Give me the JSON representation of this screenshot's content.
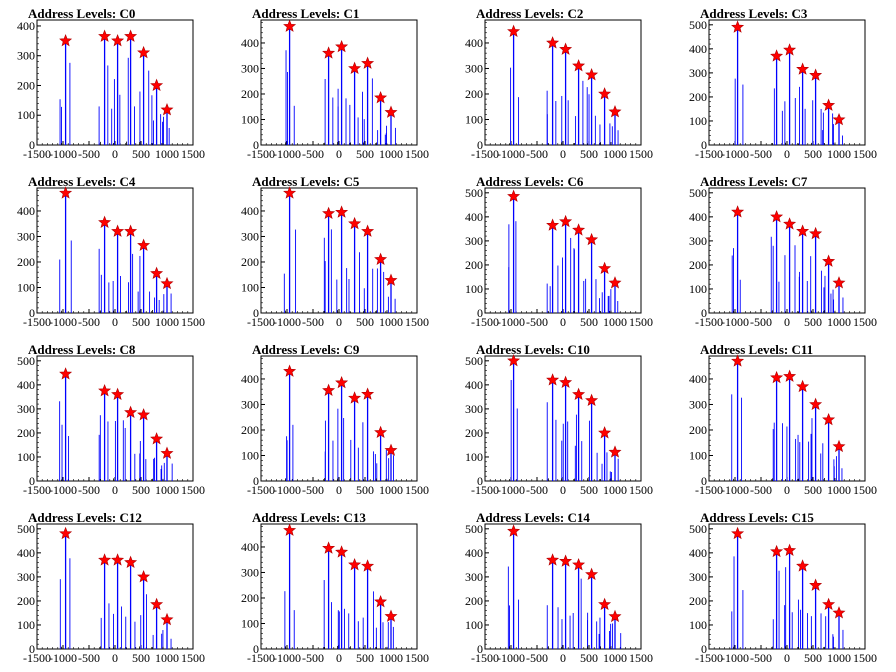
{
  "chart_data": {
    "type": "histogram",
    "layout": "4x4 grid",
    "panel_title_prefix": "Address Levels: ",
    "xlim": [
      -1500,
      1500
    ],
    "x_tick_labels": [
      "-1500",
      "-1000",
      "-500",
      "0",
      "500",
      "1000",
      "1500"
    ],
    "x_ticks": [
      -1500,
      -1000,
      -500,
      0,
      500,
      1000,
      1500
    ],
    "bar_color": "#0000ff",
    "marker_color": "#ff0000",
    "marker_shape": "star",
    "peak_x": [
      -950,
      -200,
      50,
      300,
      550,
      800,
      1000
    ],
    "panels": [
      {
        "title": "C0",
        "ylim": [
          0,
          420
        ],
        "yticks": [
          0,
          100,
          200,
          300,
          400
        ],
        "peaks": [
          350,
          365,
          350,
          365,
          310,
          200,
          118
        ]
      },
      {
        "title": "C1",
        "ylim": [
          0,
          490
        ],
        "yticks": [
          0,
          100,
          200,
          300,
          400
        ],
        "peaks": [
          465,
          360,
          385,
          300,
          320,
          185,
          128
        ]
      },
      {
        "title": "C2",
        "ylim": [
          0,
          490
        ],
        "yticks": [
          0,
          100,
          200,
          300,
          400
        ],
        "peaks": [
          445,
          400,
          375,
          310,
          275,
          200,
          130
        ]
      },
      {
        "title": "C3",
        "ylim": [
          0,
          520
        ],
        "yticks": [
          0,
          100,
          200,
          300,
          400,
          500
        ],
        "peaks": [
          490,
          370,
          395,
          315,
          290,
          165,
          105
        ]
      },
      {
        "title": "C4",
        "ylim": [
          0,
          490
        ],
        "yticks": [
          0,
          100,
          200,
          300,
          400
        ],
        "peaks": [
          470,
          355,
          320,
          320,
          265,
          155,
          115
        ]
      },
      {
        "title": "C5",
        "ylim": [
          0,
          490
        ],
        "yticks": [
          0,
          100,
          200,
          300,
          400
        ],
        "peaks": [
          470,
          390,
          395,
          350,
          320,
          210,
          128
        ]
      },
      {
        "title": "C6",
        "ylim": [
          0,
          520
        ],
        "yticks": [
          0,
          100,
          200,
          300,
          400,
          500
        ],
        "peaks": [
          485,
          365,
          380,
          345,
          305,
          185,
          125
        ]
      },
      {
        "title": "C7",
        "ylim": [
          0,
          520
        ],
        "yticks": [
          0,
          100,
          200,
          300,
          400,
          500
        ],
        "peaks": [
          420,
          400,
          370,
          340,
          330,
          215,
          125
        ]
      },
      {
        "title": "C8",
        "ylim": [
          0,
          520
        ],
        "yticks": [
          0,
          100,
          200,
          300,
          400,
          500
        ],
        "peaks": [
          445,
          375,
          360,
          285,
          275,
          175,
          115
        ]
      },
      {
        "title": "C9",
        "ylim": [
          0,
          490
        ],
        "yticks": [
          0,
          100,
          200,
          300,
          400
        ],
        "peaks": [
          430,
          355,
          385,
          325,
          340,
          190,
          120
        ]
      },
      {
        "title": "C10",
        "ylim": [
          0,
          520
        ],
        "yticks": [
          0,
          100,
          200,
          300,
          400,
          500
        ],
        "peaks": [
          500,
          420,
          410,
          360,
          335,
          200,
          120
        ]
      },
      {
        "title": "C11",
        "ylim": [
          0,
          490
        ],
        "yticks": [
          0,
          100,
          200,
          300,
          400
        ],
        "peaks": [
          470,
          405,
          410,
          370,
          300,
          240,
          135
        ]
      },
      {
        "title": "C12",
        "ylim": [
          0,
          520
        ],
        "yticks": [
          0,
          100,
          200,
          300,
          400,
          500
        ],
        "peaks": [
          480,
          370,
          370,
          360,
          300,
          185,
          122
        ]
      },
      {
        "title": "C13",
        "ylim": [
          0,
          490
        ],
        "yticks": [
          0,
          100,
          200,
          300,
          400
        ],
        "peaks": [
          465,
          395,
          380,
          330,
          325,
          185,
          128
        ]
      },
      {
        "title": "C14",
        "ylim": [
          0,
          520
        ],
        "yticks": [
          0,
          100,
          200,
          300,
          400,
          500
        ],
        "peaks": [
          490,
          370,
          365,
          350,
          310,
          185,
          135
        ]
      },
      {
        "title": "C15",
        "ylim": [
          0,
          520
        ],
        "yticks": [
          0,
          100,
          200,
          300,
          400,
          500
        ],
        "peaks": [
          480,
          405,
          410,
          345,
          265,
          185,
          150
        ]
      }
    ]
  }
}
